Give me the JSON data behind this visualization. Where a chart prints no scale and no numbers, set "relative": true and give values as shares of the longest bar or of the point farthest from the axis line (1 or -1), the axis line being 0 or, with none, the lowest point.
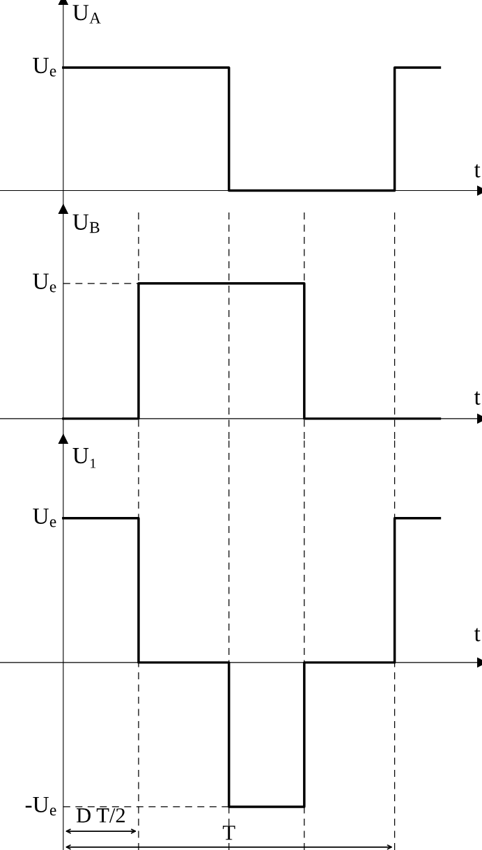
{
  "chart_data": [
    {
      "type": "step",
      "relative": true,
      "ylabel": "U$_{A}$",
      "xlabel": "t",
      "categories": [
        null,
        null,
        null,
        null,
        null,
        null,
        null,
        null,
        null,
        null,
        null,
        null,
        null,
        null,
        null,
        null,
        null,
        null,
        null,
        null,
        null,
        null,
        null,
        null,
        null,
        null
      ],
      "series": [
        {
          "color": "#000000",
          "values": [
            1,
            1,
            1,
            1,
            1,
            1,
            1,
            1,
            1,
            1,
            1,
            0,
            0,
            0,
            0,
            0,
            0,
            0,
            0,
            0,
            0,
            0,
            1,
            1,
            1,
            1
          ]
        }
      ],
      "annotations": [
        "U$_{e}$"
      ]
    },
    {
      "type": "step",
      "relative": true,
      "grid": "x",
      "ylabel": "U$_{B}$",
      "xlabel": "t",
      "categories": [
        null,
        null,
        null,
        null,
        null,
        null,
        null,
        null,
        null,
        null,
        null,
        null,
        null,
        null,
        null,
        null,
        null,
        null,
        null,
        null,
        null,
        null,
        null,
        null,
        null,
        null
      ],
      "series": [
        {
          "color": "#000000",
          "values": [
            0,
            0,
            0,
            0,
            0,
            1,
            1,
            1,
            1,
            1,
            1,
            1,
            1,
            1,
            1,
            1,
            0,
            0,
            0,
            0,
            0,
            0,
            0,
            0,
            0,
            0
          ]
        }
      ],
      "annotations": [
        "U$_{e}$"
      ]
    },
    {
      "type": "step",
      "relative": true,
      "grid": "x",
      "ylabel": "U₁",
      "xlabel": "t",
      "categories": [
        null,
        null,
        null,
        null,
        null,
        null,
        null,
        null,
        null,
        null,
        null,
        null,
        null,
        null,
        null,
        null,
        null,
        null,
        null,
        null,
        null,
        null,
        null,
        null,
        null,
        null
      ],
      "series": [
        {
          "color": "#000000",
          "values": [
            1,
            1,
            1,
            1,
            1,
            0,
            0,
            0,
            0,
            0,
            0,
            -1,
            -1,
            -1,
            -1,
            -1,
            0,
            0,
            0,
            0,
            0,
            0,
            1,
            1,
            1,
            1
          ]
        }
      ],
      "annotations": [
        "U$_{e}$",
        "-U$_{e}$",
        "D T/2",
        "T"
      ]
    }
  ]
}
